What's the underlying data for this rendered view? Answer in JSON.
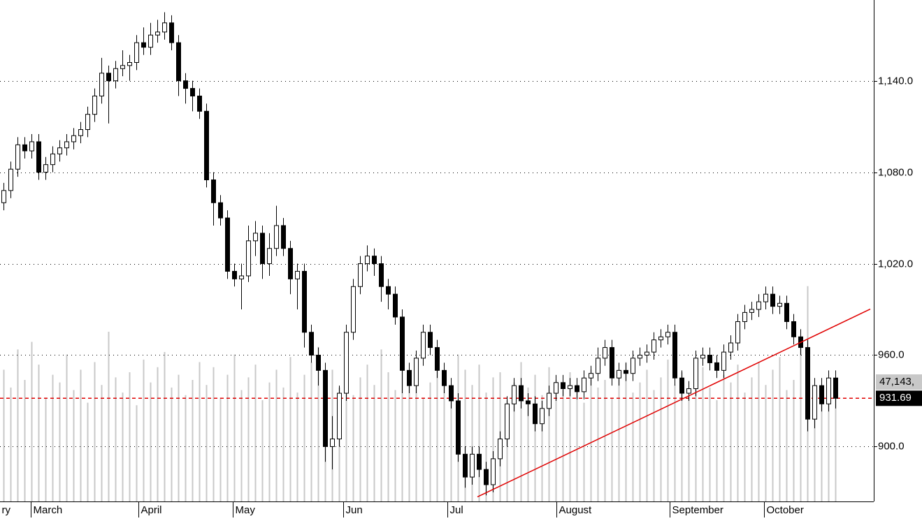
{
  "chart_data": {
    "type": "candlestick",
    "open": [
      1060,
      1068,
      1082,
      1098,
      1094,
      1100,
      1080,
      1085,
      1092,
      1096,
      1100,
      1104,
      1108,
      1118,
      1130,
      1145,
      1140,
      1148,
      1150,
      1152,
      1165,
      1162,
      1170,
      1172,
      1178,
      1165,
      1140,
      1135,
      1130,
      1120,
      1075,
      1060,
      1050,
      1015,
      1010,
      1012,
      1035,
      1040,
      1020,
      1030,
      1045,
      1030,
      1010,
      1015,
      975,
      960,
      950,
      900,
      905,
      935,
      975,
      1005,
      1020,
      1025,
      1020,
      1005,
      1000,
      985,
      950,
      940,
      958,
      975,
      965,
      950,
      940,
      930,
      895,
      880,
      895,
      885,
      875,
      892,
      905,
      928,
      940,
      930,
      928,
      915,
      925,
      935,
      942,
      938,
      940,
      936,
      945,
      948,
      958,
      965,
      945,
      950,
      948,
      958,
      960,
      962,
      970,
      972,
      975,
      945,
      935,
      938,
      958,
      960,
      955,
      950,
      962,
      968,
      982,
      988,
      990,
      995,
      1000,
      992,
      994,
      982,
      972,
      965,
      918,
      940,
      928,
      945
    ],
    "high": [
      1073,
      1087,
      1103,
      1103,
      1105,
      1105,
      1090,
      1097,
      1101,
      1105,
      1109,
      1113,
      1123,
      1135,
      1155,
      1150,
      1153,
      1160,
      1157,
      1170,
      1175,
      1178,
      1180,
      1185,
      1183,
      1170,
      1145,
      1140,
      1135,
      1125,
      1080,
      1065,
      1055,
      1020,
      1020,
      1045,
      1048,
      1045,
      1040,
      1058,
      1050,
      1035,
      1020,
      1020,
      980,
      965,
      955,
      920,
      940,
      980,
      1010,
      1025,
      1032,
      1030,
      1025,
      1010,
      1005,
      990,
      955,
      963,
      980,
      980,
      970,
      955,
      945,
      935,
      900,
      900,
      900,
      890,
      897,
      910,
      933,
      945,
      945,
      935,
      933,
      930,
      940,
      947,
      947,
      945,
      945,
      950,
      953,
      965,
      970,
      970,
      955,
      955,
      963,
      965,
      967,
      975,
      977,
      980,
      980,
      950,
      943,
      963,
      965,
      965,
      960,
      967,
      973,
      987,
      993,
      995,
      1000,
      1005,
      1005,
      999,
      999,
      987,
      977,
      970,
      945,
      945,
      950,
      950
    ],
    "low": [
      1055,
      1063,
      1077,
      1089,
      1089,
      1075,
      1075,
      1080,
      1087,
      1091,
      1095,
      1099,
      1103,
      1113,
      1125,
      1112,
      1135,
      1143,
      1140,
      1147,
      1157,
      1157,
      1165,
      1167,
      1160,
      1130,
      1125,
      1120,
      1115,
      1070,
      1045,
      1045,
      1010,
      1005,
      990,
      1008,
      1025,
      1010,
      1012,
      1025,
      1025,
      1000,
      990,
      965,
      955,
      940,
      890,
      885,
      900,
      930,
      970,
      1000,
      1015,
      1012,
      995,
      990,
      980,
      935,
      935,
      935,
      953,
      960,
      945,
      935,
      925,
      890,
      873,
      875,
      880,
      868,
      870,
      887,
      900,
      923,
      925,
      920,
      910,
      910,
      920,
      930,
      933,
      933,
      931,
      931,
      940,
      943,
      953,
      940,
      940,
      943,
      943,
      953,
      955,
      957,
      965,
      967,
      940,
      930,
      930,
      933,
      953,
      950,
      945,
      945,
      957,
      963,
      977,
      983,
      985,
      990,
      987,
      987,
      977,
      967,
      960,
      910,
      912,
      923,
      923,
      925
    ],
    "close": [
      1068,
      1082,
      1098,
      1094,
      1100,
      1080,
      1085,
      1092,
      1096,
      1100,
      1104,
      1108,
      1118,
      1130,
      1145,
      1140,
      1148,
      1150,
      1152,
      1165,
      1162,
      1170,
      1172,
      1178,
      1165,
      1140,
      1135,
      1130,
      1120,
      1075,
      1060,
      1050,
      1015,
      1010,
      1012,
      1035,
      1040,
      1020,
      1030,
      1045,
      1030,
      1010,
      1015,
      975,
      960,
      950,
      900,
      905,
      935,
      975,
      1005,
      1020,
      1025,
      1020,
      1005,
      1000,
      985,
      950,
      940,
      958,
      975,
      965,
      950,
      940,
      930,
      895,
      880,
      895,
      885,
      875,
      892,
      905,
      928,
      940,
      930,
      928,
      915,
      925,
      935,
      942,
      938,
      940,
      936,
      945,
      948,
      958,
      965,
      945,
      950,
      948,
      958,
      960,
      962,
      970,
      972,
      975,
      945,
      935,
      938,
      958,
      960,
      955,
      950,
      962,
      968,
      982,
      988,
      990,
      995,
      1000,
      992,
      994,
      982,
      972,
      965,
      918,
      940,
      928,
      945,
      931.69
    ],
    "volume": [
      52000,
      45000,
      60000,
      48000,
      63000,
      54000,
      41000,
      50000,
      47000,
      58000,
      44000,
      52000,
      39000,
      55000,
      46000,
      67000,
      49000,
      43000,
      51000,
      38000,
      56000,
      47000,
      53000,
      59000,
      45000,
      50000,
      42000,
      48000,
      55000,
      46000,
      53000,
      41000,
      50000,
      58000,
      44000,
      49000,
      54000,
      40000,
      47000,
      52000,
      45000,
      57000,
      43000,
      50000,
      55000,
      61000,
      48000,
      52000,
      45000,
      58000,
      42000,
      49000,
      54000,
      46000,
      60000,
      51000,
      44000,
      56000,
      48000,
      53000,
      41000,
      47000,
      55000,
      50000,
      44000,
      58000,
      52000,
      46000,
      54000,
      43000,
      49000,
      51000,
      40000,
      47000,
      55000,
      45000,
      50000,
      42000,
      53000,
      48000,
      44000,
      51000,
      46000,
      39000,
      52000,
      45000,
      48000,
      41000,
      50000,
      55000,
      43000,
      47000,
      52000,
      44000,
      49000,
      56000,
      46000,
      51000,
      42000,
      48000,
      53000,
      45000,
      40000,
      50000,
      47000,
      54000,
      43000,
      49000,
      55000,
      46000,
      52000,
      57000,
      44000,
      48000,
      62000,
      85000,
      38000,
      41000,
      44000,
      47143
    ],
    "volume_label": "47,143,",
    "trendline": {
      "color": "#e00000",
      "x": [
        67.8,
        124.0
      ],
      "y": [
        867,
        990.2
      ]
    },
    "last_line_color": "#e00000",
    "xlim": [
      -0.5,
      124.5
    ],
    "ylim": [
      864,
      1193
    ],
    "vlim": [
      0,
      198000
    ],
    "yticks": [
      {
        "value": 900,
        "label": "900.0"
      },
      {
        "value": 960,
        "label": "960.0"
      },
      {
        "value": 1020,
        "label": "1,020.0"
      },
      {
        "value": 1080,
        "label": "1,080.0"
      },
      {
        "value": 1140,
        "label": "1,140.0"
      }
    ],
    "xticks": [
      {
        "value": -0.6,
        "label": "ry"
      },
      {
        "value": 3.9,
        "label": "March"
      },
      {
        "value": 19.3,
        "label": "April"
      },
      {
        "value": 32.8,
        "label": "May"
      },
      {
        "value": 48.6,
        "label": "Jun"
      },
      {
        "value": 63.5,
        "label": "Jul"
      },
      {
        "value": 79.1,
        "label": "August"
      },
      {
        "value": 95.3,
        "label": "September"
      },
      {
        "value": 108.8,
        "label": "October"
      }
    ],
    "grid": true
  }
}
